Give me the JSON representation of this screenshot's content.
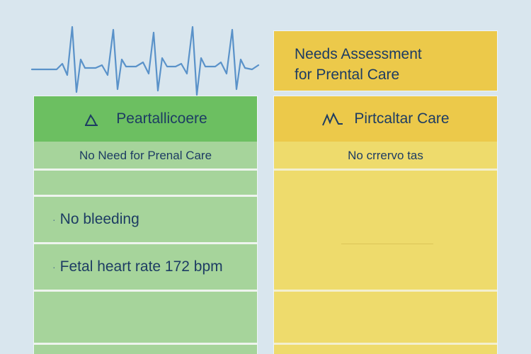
{
  "colors": {
    "background": "#d9e6ee",
    "heartbeat_line": "#5a92c9",
    "green_header": "#6cbf61",
    "green_body": "#a6d49b",
    "yellow_header": "#ecc94a",
    "yellow_body": "#eedb6c",
    "text": "#1d3c63"
  },
  "left_panel": {
    "icon": "mountain-peak-icon",
    "header": "Peartallicoere",
    "subheader": "No Need for Prenal Care",
    "items": [
      "No bleeding",
      "Fetal heart rate 172 bpm"
    ]
  },
  "right_panel": {
    "assessment_title_line1": "Needs Assessment",
    "assessment_title_line2": "for Prental Care",
    "icon": "double-peak-icon",
    "header": "Pirtcaltar Care",
    "subheader": "No crrervo tas"
  }
}
